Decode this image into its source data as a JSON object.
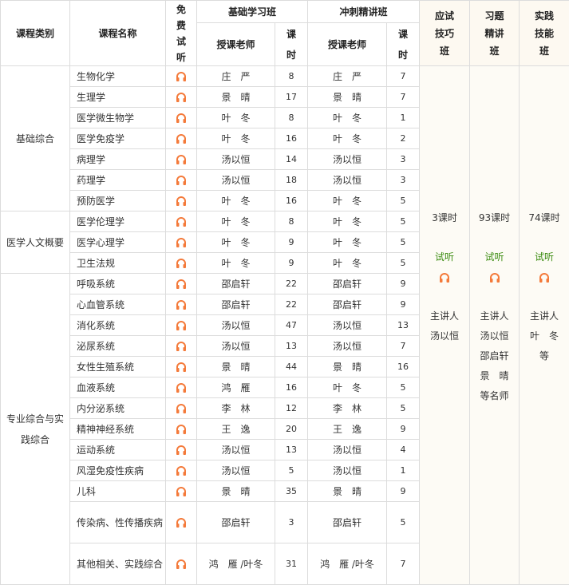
{
  "header": {
    "category": "课程类别",
    "course_name": "课程名称",
    "free_trial": "免费试听",
    "basic_class": "基础学习班",
    "sprint_class": "冲刺精讲班",
    "teacher": "授课老师",
    "hours": "课时",
    "exam_skills": "应试技巧班",
    "exercise": "习题精讲班",
    "practice": "实践技能班"
  },
  "categories": [
    {
      "label": "基础综合",
      "rows": 7
    },
    {
      "label": "医学人文概要",
      "rows": 3
    },
    {
      "label": "专业综合与实践综合",
      "rows": 14
    }
  ],
  "rows": [
    {
      "name": "生物化学",
      "basic_teacher": "庄　严",
      "basic_hours": "8",
      "sprint_teacher": "庄　严",
      "sprint_hours": "7"
    },
    {
      "name": "生理学",
      "basic_teacher": "景　晴",
      "basic_hours": "17",
      "sprint_teacher": "景　晴",
      "sprint_hours": "7"
    },
    {
      "name": "医学微生物学",
      "basic_teacher": "叶　冬",
      "basic_hours": "8",
      "sprint_teacher": "叶　冬",
      "sprint_hours": "1"
    },
    {
      "name": "医学免疫学",
      "basic_teacher": "叶　冬",
      "basic_hours": "16",
      "sprint_teacher": "叶　冬",
      "sprint_hours": "2"
    },
    {
      "name": "病理学",
      "basic_teacher": "汤以恒",
      "basic_hours": "14",
      "sprint_teacher": "汤以恒",
      "sprint_hours": "3"
    },
    {
      "name": "药理学",
      "basic_teacher": "汤以恒",
      "basic_hours": "18",
      "sprint_teacher": "汤以恒",
      "sprint_hours": "3"
    },
    {
      "name": "预防医学",
      "basic_teacher": "叶　冬",
      "basic_hours": "16",
      "sprint_teacher": "叶　冬",
      "sprint_hours": "5"
    },
    {
      "name": "医学伦理学",
      "basic_teacher": "叶　冬",
      "basic_hours": "8",
      "sprint_teacher": "叶　冬",
      "sprint_hours": "5"
    },
    {
      "name": "医学心理学",
      "basic_teacher": "叶　冬",
      "basic_hours": "9",
      "sprint_teacher": "叶　冬",
      "sprint_hours": "5"
    },
    {
      "name": "卫生法规",
      "basic_teacher": "叶　冬",
      "basic_hours": "9",
      "sprint_teacher": "叶　冬",
      "sprint_hours": "5"
    },
    {
      "name": "呼吸系统",
      "basic_teacher": "邵启轩",
      "basic_hours": "22",
      "sprint_teacher": "邵启轩",
      "sprint_hours": "9"
    },
    {
      "name": "心血管系统",
      "basic_teacher": "邵启轩",
      "basic_hours": "22",
      "sprint_teacher": "邵启轩",
      "sprint_hours": "9"
    },
    {
      "name": "消化系统",
      "basic_teacher": "汤以恒",
      "basic_hours": "47",
      "sprint_teacher": "汤以恒",
      "sprint_hours": "13"
    },
    {
      "name": "泌尿系统",
      "basic_teacher": "汤以恒",
      "basic_hours": "13",
      "sprint_teacher": "汤以恒",
      "sprint_hours": "7"
    },
    {
      "name": "女性生殖系统",
      "basic_teacher": "景　晴",
      "basic_hours": "44",
      "sprint_teacher": "景　晴",
      "sprint_hours": "16"
    },
    {
      "name": "血液系统",
      "basic_teacher": "鸿　雁",
      "basic_hours": "16",
      "sprint_teacher": "叶　冬",
      "sprint_hours": "5"
    },
    {
      "name": "内分泌系统",
      "basic_teacher": "李　林",
      "basic_hours": "12",
      "sprint_teacher": "李　林",
      "sprint_hours": "5"
    },
    {
      "name": "精神神经系统",
      "basic_teacher": "王　逸",
      "basic_hours": "20",
      "sprint_teacher": "王　逸",
      "sprint_hours": "9"
    },
    {
      "name": "运动系统",
      "basic_teacher": "汤以恒",
      "basic_hours": "13",
      "sprint_teacher": "汤以恒",
      "sprint_hours": "4"
    },
    {
      "name": "风湿免疫性疾病",
      "basic_teacher": "汤以恒",
      "basic_hours": "5",
      "sprint_teacher": "汤以恒",
      "sprint_hours": "1"
    },
    {
      "name": "儿科",
      "basic_teacher": "景　晴",
      "basic_hours": "35",
      "sprint_teacher": "景　晴",
      "sprint_hours": "9"
    },
    {
      "name": "传染病、性传播疾病",
      "basic_teacher": "邵启轩",
      "basic_hours": "3",
      "sprint_teacher": "邵启轩",
      "sprint_hours": "5",
      "tall": true
    },
    {
      "name": "其他相关、实践综合",
      "basic_teacher": "鸿　雁 /叶冬",
      "basic_hours": "31",
      "sprint_teacher": "鸿　雁 /叶冬",
      "sprint_hours": "7",
      "tall": true
    }
  ],
  "side_classes": [
    {
      "hours": "3课时",
      "trial": "试听",
      "lecturer_label": "主讲人",
      "lecturers": [
        "汤以恒"
      ]
    },
    {
      "hours": "93课时",
      "trial": "试听",
      "lecturer_label": "主讲人",
      "lecturers": [
        "汤以恒",
        "邵启轩",
        "景　晴",
        "等名师"
      ]
    },
    {
      "hours": "74课时",
      "trial": "试听",
      "lecturer_label": "主讲人",
      "lecturers": [
        "叶　冬",
        "等"
      ]
    }
  ],
  "colors": {
    "headphone": "#f47a3a",
    "trial_text": "#3b8c10",
    "warm_bg": "#fdf9f1"
  },
  "icons": {
    "trial": "headphones-icon"
  }
}
